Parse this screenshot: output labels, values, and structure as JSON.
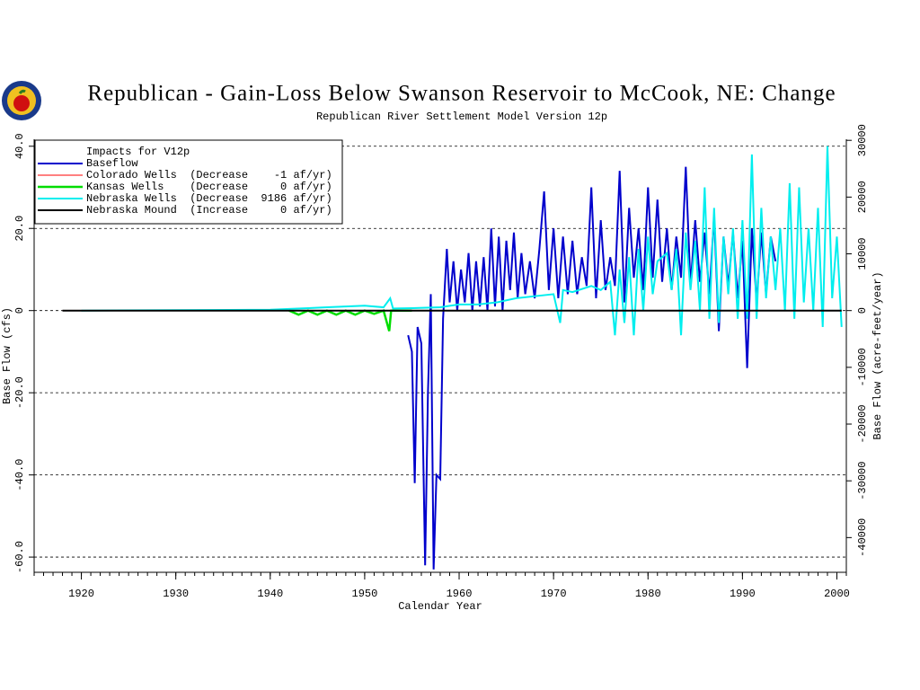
{
  "chart_data": {
    "type": "line",
    "title": "Republican - Gain-Loss Below Swanson Reservoir to McCook, NE: Change",
    "subtitle": "Republican River Settlement Model Version 12p",
    "xlabel": "Calendar Year",
    "ylabel": "Base Flow (cfs)",
    "y2label": "Base Flow (acre-feet/year)",
    "legend_title": "Impacts for V12p",
    "legend": "upper left",
    "grid": true,
    "xlim": [
      1915,
      2001
    ],
    "xticks": [
      1920,
      1930,
      1940,
      1950,
      1960,
      1970,
      1980,
      1990,
      2000
    ],
    "ylim": [
      -63.7,
      41.7
    ],
    "yticks": [
      {
        "value": -60,
        "label": "-60.0"
      },
      {
        "value": -40,
        "label": "-40.0"
      },
      {
        "value": -20,
        "label": "-20.0"
      },
      0,
      {
        "value": 20,
        "label": "20.0"
      },
      {
        "value": 40,
        "label": "40.0"
      }
    ],
    "y2lim": [
      -46120,
      30190
    ],
    "y2ticks": [
      -40000,
      -30000,
      -20000,
      -10000,
      0,
      10000,
      20000,
      30000
    ],
    "series": [
      {
        "name": "Baseflow",
        "color": "#0000cc",
        "x": [
          1954.6,
          1955.0,
          1955.3,
          1955.6,
          1956.0,
          1956.4,
          1956.7,
          1957.0,
          1957.3,
          1957.6,
          1958.0,
          1958.3,
          1958.7,
          1959.0,
          1959.4,
          1959.8,
          1960.2,
          1960.6,
          1961.0,
          1961.4,
          1961.8,
          1962.2,
          1962.6,
          1963.0,
          1963.4,
          1963.8,
          1964.2,
          1964.6,
          1965.0,
          1965.4,
          1965.8,
          1966.2,
          1966.6,
          1967.0,
          1967.5,
          1968.0,
          1968.5,
          1969.0,
          1969.5,
          1970.0,
          1970.5,
          1971.0,
          1971.5,
          1972.0,
          1972.5,
          1973.0,
          1973.5,
          1974.0,
          1974.5,
          1975.0,
          1975.5,
          1976.0,
          1976.5,
          1977.0,
          1977.5,
          1978.0,
          1978.5,
          1979.0,
          1979.5,
          1980.0,
          1980.5,
          1981.0,
          1981.5,
          1982.0,
          1982.5,
          1983.0,
          1983.5,
          1984.0,
          1984.5,
          1985.0,
          1985.5,
          1986.0,
          1986.5,
          1987.0,
          1987.5,
          1988.0,
          1988.5,
          1989.0,
          1989.5,
          1990.0,
          1990.5,
          1991.0,
          1991.5,
          1992.0,
          1992.5,
          1993.0,
          1993.5
        ],
        "values": [
          -6,
          -10,
          -42,
          -4,
          -8,
          -62,
          -20,
          4,
          -63,
          -40,
          -41,
          -2,
          15,
          2,
          12,
          0,
          10,
          2,
          14,
          0,
          12,
          1,
          13,
          0,
          20,
          1,
          18,
          0,
          17,
          5,
          19,
          3,
          14,
          4,
          12,
          3,
          15,
          29,
          5,
          20,
          3,
          18,
          4,
          17,
          4,
          13,
          6,
          30,
          3,
          22,
          5,
          13,
          6,
          34,
          2,
          25,
          8,
          20,
          5,
          30,
          8,
          27,
          7,
          20,
          5,
          18,
          8,
          35,
          6,
          22,
          7,
          19,
          4,
          23,
          -5,
          18,
          6,
          19,
          3,
          17,
          -14,
          20,
          2,
          19,
          4,
          18,
          12
        ]
      },
      {
        "name": "Colorado Wells  (Decrease    -1 af/yr)",
        "color": "#ff0000",
        "x": [
          1918,
          2000.5
        ],
        "values": [
          0,
          0
        ]
      },
      {
        "name": "Kansas Wells    (Decrease     0 af/yr)",
        "color": "#00dd00",
        "x": [
          1942,
          1943,
          1944,
          1945,
          1946,
          1947,
          1948,
          1949,
          1950,
          1951,
          1952,
          1952.6,
          1952.8,
          1955
        ],
        "values": [
          0,
          -1,
          0,
          -1,
          0,
          -1,
          0,
          -1,
          0,
          -0.8,
          0,
          -5,
          0,
          0
        ]
      },
      {
        "name": "Nebraska Wells  (Decrease  9186 af/yr)",
        "color": "#00eeee",
        "x": [
          1920,
          1940,
          1942,
          1944,
          1946,
          1948,
          1950,
          1952,
          1952.7,
          1953,
          1955,
          1958,
          1960,
          1962,
          1964,
          1966,
          1968,
          1970,
          1970.7,
          1971,
          1972,
          1974,
          1975,
          1976,
          1976.5,
          1977,
          1977.5,
          1978,
          1978.5,
          1979,
          1979.5,
          1980,
          1980.5,
          1981,
          1982,
          1982.5,
          1983,
          1983.5,
          1984,
          1984.5,
          1985,
          1985.5,
          1986,
          1986.5,
          1987,
          1987.5,
          1988,
          1988.5,
          1989,
          1989.5,
          1990,
          1990.5,
          1991,
          1991.5,
          1992,
          1992.5,
          1993,
          1993.5,
          1994,
          1994.5,
          1995,
          1995.5,
          1996,
          1996.5,
          1997,
          1997.5,
          1998,
          1998.5,
          1999,
          1999.5,
          2000,
          2000.5
        ],
        "values": [
          0,
          0.2,
          0.4,
          0.6,
          0.8,
          1.0,
          1.2,
          0.8,
          3,
          0.5,
          0.6,
          0.8,
          1.5,
          1.5,
          2,
          3,
          3.5,
          4,
          -3,
          5,
          4.5,
          6,
          5,
          7,
          -6,
          10,
          -3,
          13,
          -6,
          15,
          0,
          18,
          4,
          12,
          14,
          5,
          15,
          -6,
          19,
          5,
          17,
          0,
          30,
          -2,
          25,
          -3,
          18,
          4,
          20,
          -2,
          22,
          -2,
          38,
          -2,
          25,
          3,
          18,
          5,
          20,
          0,
          31,
          -2,
          30,
          2,
          20,
          0,
          25,
          -4,
          40,
          3,
          18,
          -4
        ]
      },
      {
        "name": "Nebraska Mound  (Increase     0 af/yr)",
        "color": "#000000",
        "x": [
          1918,
          2000.5
        ],
        "values": [
          0,
          0
        ]
      }
    ]
  }
}
